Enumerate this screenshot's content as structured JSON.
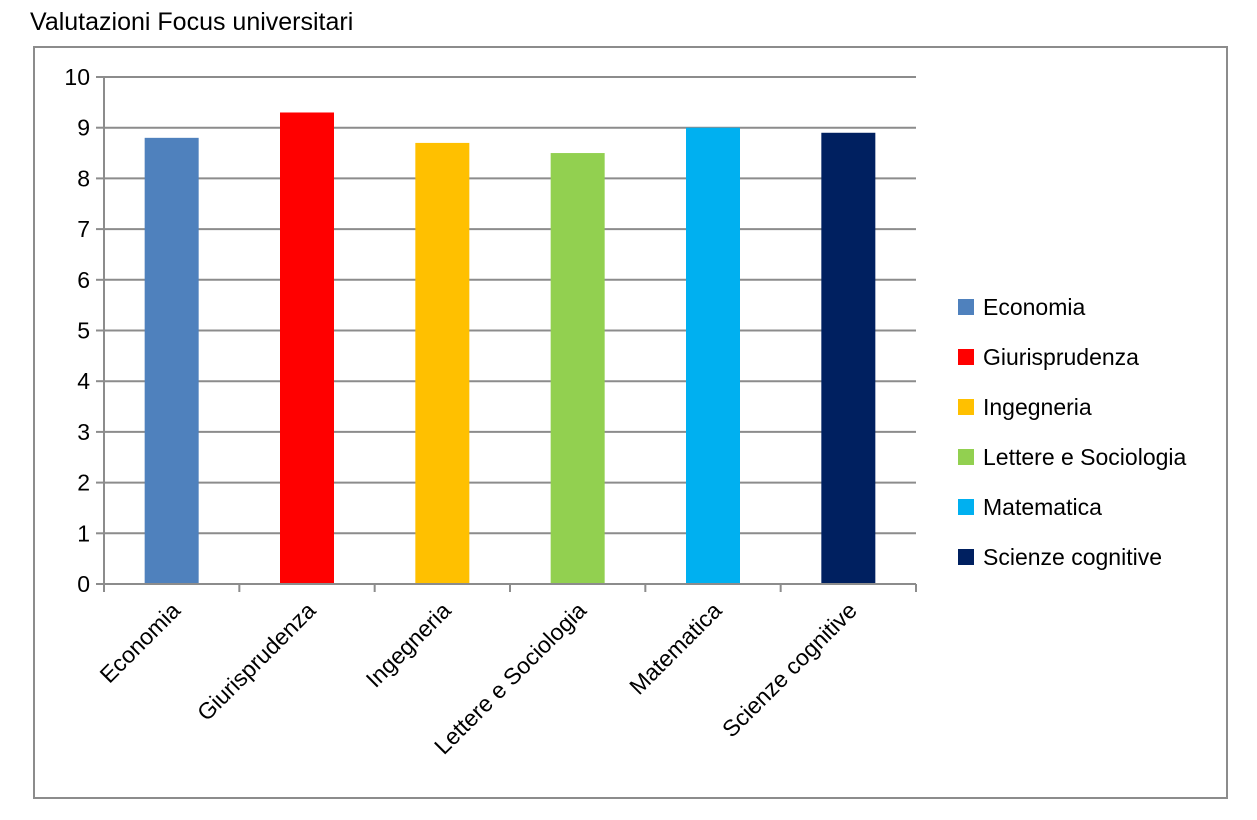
{
  "chart_data": {
    "type": "bar",
    "title": "Valutazioni Focus universitari",
    "xlabel": "",
    "ylabel": "",
    "categories": [
      "Economia",
      "Giurisprudenza",
      "Ingegneria",
      "Lettere e Sociologia",
      "Matematica",
      "Scienze cognitive"
    ],
    "values": [
      8.8,
      9.3,
      8.7,
      8.5,
      9.0,
      8.9
    ],
    "colors": [
      "#4f81bd",
      "#ff0000",
      "#ffc000",
      "#92d050",
      "#00b0f0",
      "#002060"
    ],
    "ylim": [
      0,
      10
    ],
    "yticks": [
      "0",
      "1",
      "2",
      "3",
      "4",
      "5",
      "6",
      "7",
      "8",
      "9",
      "10"
    ],
    "grid": true,
    "legend_position": "right",
    "legend": [
      "Economia",
      "Giurisprudenza",
      "Ingegneria",
      "Lettere e Sociologia",
      "Matematica",
      "Scienze cognitive"
    ]
  }
}
